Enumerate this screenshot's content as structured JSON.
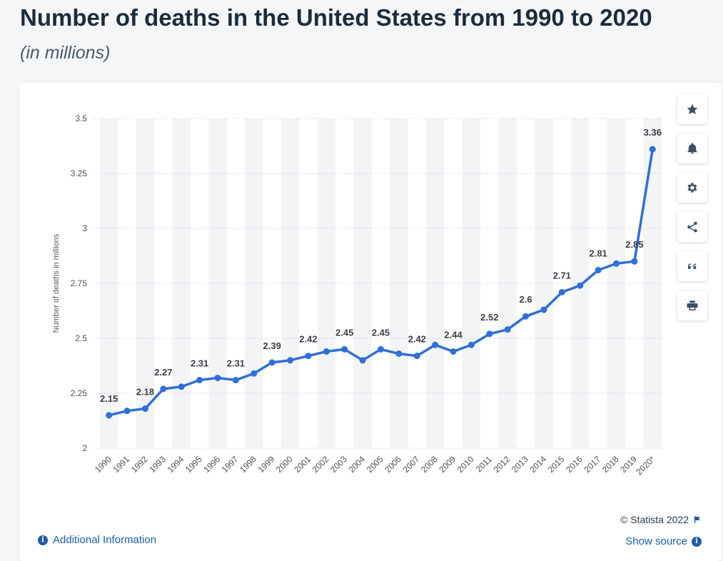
{
  "header": {
    "title": "Number of deaths in the United States from 1990 to 2020",
    "subtitle": "(in millions)"
  },
  "toolbar": {
    "icons": [
      "star-icon",
      "bell-icon",
      "gear-icon",
      "share-icon",
      "quote-icon",
      "print-icon"
    ]
  },
  "footer": {
    "credit": "© Statista 2022",
    "show_source": "Show source",
    "additional_info": "Additional Information"
  },
  "colors": {
    "line": "#2f6fd6",
    "title": "#1d2c3c",
    "link": "#1e5ca8",
    "band": "#f3f4f6"
  },
  "chart_data": {
    "type": "line",
    "ylabel": "Number of deaths in millions",
    "ylim": [
      2,
      3.5
    ],
    "yticks": [
      "2",
      "2.25",
      "2.5",
      "2.75",
      "3",
      "3.25",
      "3.5"
    ],
    "ytick_values": [
      2,
      2.25,
      2.5,
      2.75,
      3,
      3.25,
      3.5
    ],
    "grid": true,
    "categories": [
      "1990",
      "1991",
      "1992",
      "1993",
      "1994",
      "1995",
      "1996",
      "1997",
      "1998",
      "1999",
      "2000",
      "2001",
      "2002",
      "2003",
      "2004",
      "2005",
      "2006",
      "2007",
      "2008",
      "2009",
      "2010",
      "2011",
      "2012",
      "2013",
      "2014",
      "2015",
      "2016",
      "2017",
      "2018",
      "2019",
      "2020*"
    ],
    "values": [
      2.15,
      2.17,
      2.18,
      2.27,
      2.28,
      2.31,
      2.32,
      2.31,
      2.34,
      2.39,
      2.4,
      2.42,
      2.44,
      2.45,
      2.4,
      2.45,
      2.43,
      2.42,
      2.47,
      2.44,
      2.47,
      2.52,
      2.54,
      2.6,
      2.63,
      2.71,
      2.74,
      2.81,
      2.84,
      2.85,
      3.36
    ],
    "data_labels": [
      {
        "index": 0,
        "text": "2.15"
      },
      {
        "index": 2,
        "text": "2.18"
      },
      {
        "index": 3,
        "text": "2.27"
      },
      {
        "index": 5,
        "text": "2.31"
      },
      {
        "index": 7,
        "text": "2.31"
      },
      {
        "index": 9,
        "text": "2.39"
      },
      {
        "index": 11,
        "text": "2.42"
      },
      {
        "index": 13,
        "text": "2.45"
      },
      {
        "index": 15,
        "text": "2.45"
      },
      {
        "index": 17,
        "text": "2.42"
      },
      {
        "index": 19,
        "text": "2.44"
      },
      {
        "index": 21,
        "text": "2.52"
      },
      {
        "index": 23,
        "text": "2.6"
      },
      {
        "index": 25,
        "text": "2.71"
      },
      {
        "index": 27,
        "text": "2.81"
      },
      {
        "index": 29,
        "text": "2.85"
      },
      {
        "index": 30,
        "text": "3.36"
      }
    ]
  }
}
